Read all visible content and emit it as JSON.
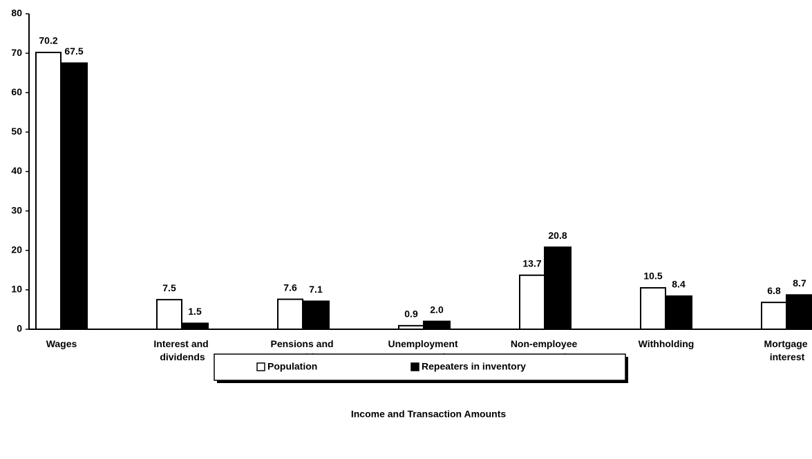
{
  "chart_data": {
    "type": "bar",
    "x_label": "Income and Transaction Amounts",
    "categories": [
      "Wages",
      "Interest and dividends",
      "Pensions and annuities",
      "Unemployment compensation",
      "Non-employee compensation",
      "Withholding",
      "Mortgage interest"
    ],
    "series": [
      {
        "name": "Population",
        "color": "#ffffff",
        "values": [
          70.2,
          7.5,
          7.6,
          0.9,
          13.7,
          10.5,
          6.8
        ],
        "value_labels": [
          "70.2",
          "7.5",
          "7.6",
          "0.9",
          "13.7",
          "10.5",
          "6.8"
        ]
      },
      {
        "name": "Repeaters in inventory",
        "color": "#000000",
        "values": [
          67.5,
          1.5,
          7.1,
          2.0,
          20.8,
          8.4,
          8.7
        ],
        "value_labels": [
          "67.5",
          "1.5",
          "7.1",
          "2.0",
          "20.8",
          "8.4",
          "8.7"
        ]
      }
    ],
    "ylim": [
      0,
      80
    ],
    "yticks": [
      0,
      10,
      20,
      30,
      40,
      50,
      60,
      70,
      80
    ],
    "grid": false,
    "legend": "bottom"
  }
}
